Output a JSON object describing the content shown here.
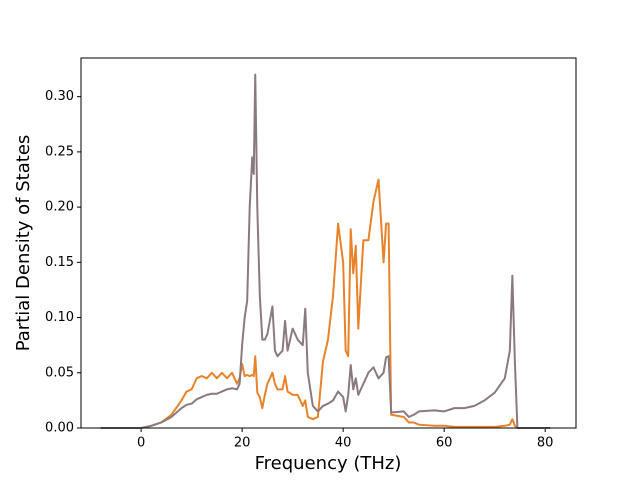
{
  "chart_data": {
    "type": "line",
    "xlabel": "Frequency (THz)",
    "ylabel": "Partial Density of States",
    "x": [
      -8,
      0,
      2,
      4,
      6,
      8,
      9,
      10,
      11,
      12,
      13,
      14,
      15,
      16,
      17,
      18,
      19,
      19.5,
      20,
      20.5,
      21,
      21.5,
      22,
      22.3,
      22.6,
      23,
      23.5,
      24,
      24.5,
      25,
      26,
      26.5,
      27,
      28,
      28.5,
      29,
      30,
      31,
      32,
      32.5,
      33,
      34,
      35,
      36,
      37,
      38,
      39,
      40,
      40.5,
      41,
      41.5,
      42,
      42.5,
      43,
      44,
      45,
      46,
      47,
      48,
      48.5,
      49,
      49.5,
      52,
      53,
      54,
      55,
      58,
      60,
      62,
      64,
      66,
      68,
      70,
      72,
      73,
      73.5,
      74,
      74.5,
      81
    ],
    "series": [
      {
        "color": "#e8832a",
        "values": [
          0,
          0,
          0.002,
          0.005,
          0.012,
          0.025,
          0.033,
          0.035,
          0.045,
          0.047,
          0.045,
          0.05,
          0.045,
          0.05,
          0.045,
          0.05,
          0.04,
          0.045,
          0.058,
          0.047,
          0.048,
          0.047,
          0.048,
          0.047,
          0.065,
          0.032,
          0.028,
          0.018,
          0.03,
          0.04,
          0.05,
          0.04,
          0.035,
          0.035,
          0.047,
          0.033,
          0.03,
          0.03,
          0.02,
          0.025,
          0.01,
          0.008,
          0.01,
          0.06,
          0.08,
          0.12,
          0.185,
          0.15,
          0.07,
          0.065,
          0.18,
          0.14,
          0.165,
          0.09,
          0.17,
          0.17,
          0.205,
          0.225,
          0.15,
          0.185,
          0.185,
          0.012,
          0.01,
          0.005,
          0.005,
          0.003,
          0.002,
          0.002,
          0.001,
          0.001,
          0.001,
          0.001,
          0.001,
          0.002,
          0.003,
          0.008,
          0.002,
          0,
          0
        ]
      },
      {
        "color": "#8a7a80",
        "values": [
          0,
          0,
          0.002,
          0.005,
          0.01,
          0.018,
          0.021,
          0.022,
          0.026,
          0.028,
          0.03,
          0.031,
          0.031,
          0.033,
          0.035,
          0.036,
          0.035,
          0.04,
          0.075,
          0.1,
          0.115,
          0.2,
          0.245,
          0.23,
          0.32,
          0.2,
          0.12,
          0.08,
          0.08,
          0.085,
          0.11,
          0.07,
          0.065,
          0.07,
          0.097,
          0.07,
          0.09,
          0.08,
          0.075,
          0.108,
          0.05,
          0.02,
          0.015,
          0.02,
          0.022,
          0.025,
          0.033,
          0.028,
          0.015,
          0.03,
          0.057,
          0.035,
          0.045,
          0.03,
          0.04,
          0.05,
          0.055,
          0.045,
          0.05,
          0.064,
          0.065,
          0.014,
          0.015,
          0.01,
          0.012,
          0.015,
          0.016,
          0.015,
          0.018,
          0.018,
          0.02,
          0.025,
          0.032,
          0.045,
          0.07,
          0.138,
          0.06,
          0,
          0
        ]
      }
    ],
    "xlim": [
      -11.9,
      86.1
    ],
    "ylim": [
      0,
      0.335
    ],
    "xticks": [
      0,
      20,
      40,
      60,
      80
    ],
    "yticks": [
      {
        "value": 0,
        "label": "0.00"
      },
      {
        "value": 0.05,
        "label": "0.05"
      },
      {
        "value": 0.1,
        "label": "0.10"
      },
      {
        "value": 0.15,
        "label": "0.15"
      },
      {
        "value": 0.2,
        "label": "0.20"
      },
      {
        "value": 0.25,
        "label": "0.25"
      },
      {
        "value": 0.3,
        "label": "0.30"
      }
    ]
  }
}
